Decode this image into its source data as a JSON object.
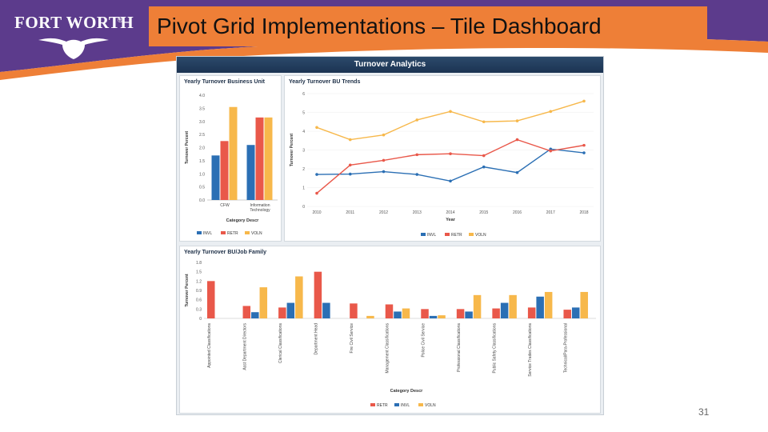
{
  "slide": {
    "title": "Pivot Grid Implementations – Tile Dashboard",
    "page_number": "31",
    "logo_text": "FORT WORTH",
    "logo_mark": "®"
  },
  "colors": {
    "purple": "#5c3b8c",
    "orange": "#ee7f37",
    "dash_header": "#1f3b5c",
    "series_blue": "#2b6fb4",
    "series_red": "#e9584a",
    "series_yellow": "#f7b84b"
  },
  "dashboard": {
    "title": "Turnover Analytics"
  },
  "chart_data": [
    {
      "type": "bar",
      "title": "Yearly Turnover Business Unit",
      "xlabel": "Category Descr",
      "ylabel": "Turnover Percent",
      "categories": [
        "CFW",
        "Information Technology"
      ],
      "series": [
        {
          "name": "INVL",
          "values": [
            1.7,
            2.1
          ]
        },
        {
          "name": "RETR",
          "values": [
            2.25,
            3.15
          ]
        },
        {
          "name": "VOLN",
          "values": [
            3.55,
            3.15
          ]
        }
      ],
      "ylim": [
        0,
        4.0
      ],
      "yticks": [
        "4.0",
        "3.5",
        "3.0",
        "2.5",
        "2.0",
        "1.5",
        "1.0",
        "0.5",
        "0.0"
      ],
      "legend": "bottom"
    },
    {
      "type": "line",
      "title": "Yearly Turnover BU Trends",
      "xlabel": "Year",
      "ylabel": "Turnover Percent",
      "x": [
        "2010",
        "2011",
        "2012",
        "2013",
        "2014",
        "2015",
        "2016",
        "2017",
        "2018"
      ],
      "series": [
        {
          "name": "INVL",
          "values": [
            1.7,
            1.72,
            1.85,
            1.7,
            1.35,
            2.1,
            1.8,
            3.05,
            2.85
          ]
        },
        {
          "name": "RETR",
          "values": [
            0.7,
            2.2,
            2.45,
            2.75,
            2.8,
            2.7,
            3.55,
            2.95,
            3.25
          ]
        },
        {
          "name": "VOLN",
          "values": [
            4.2,
            3.55,
            3.8,
            4.6,
            5.05,
            4.5,
            4.55,
            5.05,
            5.6
          ]
        }
      ],
      "ylim": [
        0,
        6
      ],
      "yticks": [
        "0",
        "1",
        "2",
        "3",
        "4",
        "5",
        "6"
      ],
      "legend": "bottom"
    },
    {
      "type": "bar",
      "title": "Yearly Turnover BU/Job Family",
      "xlabel": "Category Descr",
      "ylabel": "Turnover Percent",
      "categories": [
        "Appointed Classifications",
        "Asst Department Directors",
        "Clerical Classifications",
        "Department Head",
        "Fire Civil Service",
        "Management Classifications",
        "Police Civil Service",
        "Professional Classifications",
        "Public Safety Classifications",
        "Service Trades Classifications",
        "Technical/Para-Professional"
      ],
      "series": [
        {
          "name": "RETR",
          "values": [
            1.2,
            0.4,
            0.35,
            1.5,
            0.48,
            0.45,
            0.3,
            0.3,
            0.32,
            0.35,
            0.28
          ]
        },
        {
          "name": "INVL",
          "values": [
            0.0,
            0.2,
            0.5,
            0.5,
            0.0,
            0.22,
            0.08,
            0.22,
            0.5,
            0.7,
            0.35
          ]
        },
        {
          "name": "VOLN",
          "values": [
            0.0,
            1.0,
            1.35,
            0.0,
            0.08,
            0.32,
            0.1,
            0.75,
            0.75,
            0.85,
            0.85
          ]
        }
      ],
      "ylim": [
        0,
        1.8
      ],
      "yticks": [
        "1.8",
        "1.5",
        "1.2",
        "0.9",
        "0.6",
        "0.3",
        "0"
      ],
      "legend": "bottom"
    }
  ]
}
